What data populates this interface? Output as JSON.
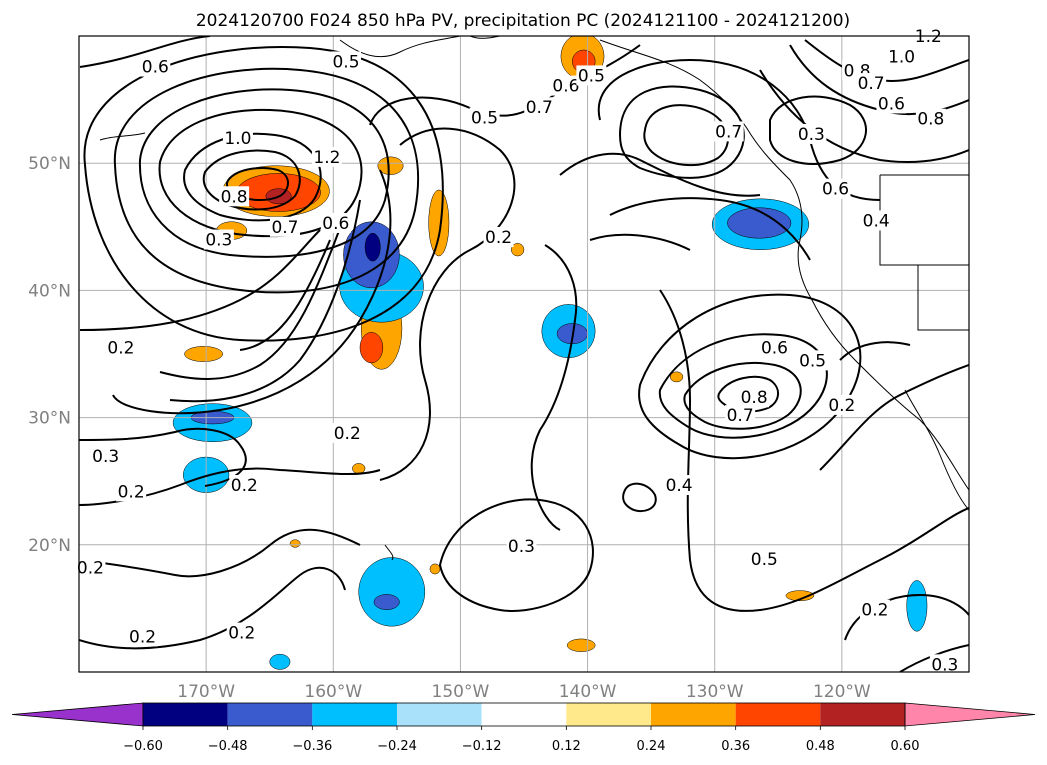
{
  "chart_data": {
    "type": "heatmap",
    "title": "2024120700 F024 850 hPa PV, precipitation PC (2024121100 - 2024121200)",
    "map_extent": {
      "lon": [
        -180,
        -110
      ],
      "lat": [
        10,
        60
      ]
    },
    "lat_ticks": [
      {
        "label": "50°N",
        "lat": 50
      },
      {
        "label": "40°N",
        "lat": 40
      },
      {
        "label": "30°N",
        "lat": 30
      },
      {
        "label": "20°N",
        "lat": 20
      }
    ],
    "lon_ticks": [
      {
        "label": "170°W",
        "lon": -170
      },
      {
        "label": "160°W",
        "lon": -160
      },
      {
        "label": "150°W",
        "lon": -150
      },
      {
        "label": "140°W",
        "lon": -140
      },
      {
        "label": "130°W",
        "lon": -130
      },
      {
        "label": "120°W",
        "lon": -120
      }
    ],
    "grid": true,
    "colorbar": {
      "orientation": "horizontal",
      "extend": "both",
      "ticks": [
        "−0.60",
        "−0.48",
        "−0.36",
        "−0.24",
        "−0.12",
        "0.12",
        "0.24",
        "0.36",
        "0.48",
        "0.60"
      ],
      "colors": [
        "#9932cc",
        "#000080",
        "#3a5bcd",
        "#00bfff",
        "#aae1fa",
        "#ffffff",
        "#ffe98a",
        "#ffa500",
        "#ff4500",
        "#b22222",
        "#ff85aa"
      ]
    },
    "pv_contour_labels": [
      {
        "text": "0.6",
        "lon": -174,
        "lat": 57.6
      },
      {
        "text": "0.5",
        "lon": -159,
        "lat": 58.0
      },
      {
        "text": "1.0",
        "lon": -167.5,
        "lat": 52.0
      },
      {
        "text": "1.2",
        "lon": -160.5,
        "lat": 50.5
      },
      {
        "text": "0.8",
        "lon": -167.8,
        "lat": 47.4
      },
      {
        "text": "0.7",
        "lon": -163.8,
        "lat": 45.0
      },
      {
        "text": "0.6",
        "lon": -159.8,
        "lat": 45.3
      },
      {
        "text": "0.3",
        "lon": -169.0,
        "lat": 44.0
      },
      {
        "text": "0.5",
        "lon": -148.1,
        "lat": 53.6
      },
      {
        "text": "0.7",
        "lon": -143.8,
        "lat": 54.4
      },
      {
        "text": "0.6",
        "lon": -141.7,
        "lat": 56.1
      },
      {
        "text": "0.5",
        "lon": -139.7,
        "lat": 56.9
      },
      {
        "text": "0.2",
        "lon": -147.0,
        "lat": 44.2
      },
      {
        "text": "0.2",
        "lon": -176.7,
        "lat": 35.5
      },
      {
        "text": "0.2",
        "lon": -158.9,
        "lat": 28.8
      },
      {
        "text": "0.3",
        "lon": -177.9,
        "lat": 27.0
      },
      {
        "text": "0.2",
        "lon": -175.9,
        "lat": 24.2
      },
      {
        "text": "0.2",
        "lon": -167.0,
        "lat": 24.7
      },
      {
        "text": "0.2",
        "lon": -179.1,
        "lat": 18.2
      },
      {
        "text": "0.2",
        "lon": -175.0,
        "lat": 12.8
      },
      {
        "text": "0.2",
        "lon": -167.2,
        "lat": 13.1
      },
      {
        "text": "0.3",
        "lon": -145.2,
        "lat": 19.9
      },
      {
        "text": "0.4",
        "lon": -132.8,
        "lat": 24.7
      },
      {
        "text": "0.5",
        "lon": -126.1,
        "lat": 18.9
      },
      {
        "text": "0.7",
        "lon": -128.9,
        "lat": 52.5
      },
      {
        "text": "0.3",
        "lon": -122.4,
        "lat": 52.3
      },
      {
        "text": "0.6",
        "lon": -120.5,
        "lat": 48.0
      },
      {
        "text": "0.4",
        "lon": -117.3,
        "lat": 45.5
      },
      {
        "text": "0.8",
        "lon": -118.8,
        "lat": 57.3
      },
      {
        "text": "0.7",
        "lon": -117.7,
        "lat": 56.3
      },
      {
        "text": "0.6",
        "lon": -116.1,
        "lat": 54.7
      },
      {
        "text": "0.8",
        "lon": -113.0,
        "lat": 53.5
      },
      {
        "text": "1.0",
        "lon": -115.3,
        "lat": 58.4
      },
      {
        "text": "1.2",
        "lon": -113.2,
        "lat": 60.0
      },
      {
        "text": "0.6",
        "lon": -125.3,
        "lat": 35.5
      },
      {
        "text": "0.5",
        "lon": -122.3,
        "lat": 34.5
      },
      {
        "text": "0.8",
        "lon": -126.9,
        "lat": 31.6
      },
      {
        "text": "0.7",
        "lon": -128.0,
        "lat": 30.2
      },
      {
        "text": "0.2",
        "lon": -120.0,
        "lat": 31.0
      },
      {
        "text": "0.2",
        "lon": -117.4,
        "lat": 14.9
      },
      {
        "text": "0.3",
        "lon": -111.9,
        "lat": 10.6
      }
    ],
    "precip_anomalies": [
      {
        "lon": -164.5,
        "lat": 47.8,
        "rx": 4.2,
        "ry": 2.0,
        "color": "#ffa500"
      },
      {
        "lon": -164.3,
        "lat": 47.7,
        "rx": 3.3,
        "ry": 1.5,
        "color": "#ff4500"
      },
      {
        "lon": -164.3,
        "lat": 47.4,
        "rx": 1.0,
        "ry": 0.6,
        "color": "#b22222"
      },
      {
        "lon": -168.0,
        "lat": 44.7,
        "rx": 1.2,
        "ry": 0.7,
        "color": "#ffa500"
      },
      {
        "lon": -170.2,
        "lat": 35.0,
        "rx": 1.5,
        "ry": 0.6,
        "color": "#ffa500"
      },
      {
        "lon": -155.5,
        "lat": 49.8,
        "rx": 1.0,
        "ry": 0.7,
        "color": "#ffa500"
      },
      {
        "lon": -151.7,
        "lat": 45.3,
        "rx": 0.8,
        "ry": 2.6,
        "color": "#ffa500"
      },
      {
        "lon": -156.2,
        "lat": 37.0,
        "rx": 1.6,
        "ry": 3.2,
        "color": "#ffa500"
      },
      {
        "lon": -157.0,
        "lat": 35.5,
        "rx": 0.9,
        "ry": 1.2,
        "color": "#ff4500"
      },
      {
        "lon": -140.4,
        "lat": 58.4,
        "rx": 1.7,
        "ry": 1.8,
        "color": "#ffa500"
      },
      {
        "lon": -140.3,
        "lat": 58.0,
        "rx": 0.9,
        "ry": 0.9,
        "color": "#ff4500"
      },
      {
        "lon": -156.2,
        "lat": 40.3,
        "rx": 3.3,
        "ry": 2.8,
        "color": "#00bfff"
      },
      {
        "lon": -157.0,
        "lat": 42.8,
        "rx": 2.2,
        "ry": 2.6,
        "color": "#3a5bcd"
      },
      {
        "lon": -156.9,
        "lat": 43.4,
        "rx": 0.6,
        "ry": 1.1,
        "color": "#000080"
      },
      {
        "lon": -169.5,
        "lat": 29.6,
        "rx": 3.1,
        "ry": 1.5,
        "color": "#00bfff"
      },
      {
        "lon": -169.5,
        "lat": 30.0,
        "rx": 1.7,
        "ry": 0.5,
        "color": "#3a5bcd"
      },
      {
        "lon": -170.0,
        "lat": 25.5,
        "rx": 1.8,
        "ry": 1.4,
        "color": "#00bfff"
      },
      {
        "lon": -141.5,
        "lat": 36.8,
        "rx": 2.1,
        "ry": 2.1,
        "color": "#00bfff"
      },
      {
        "lon": -141.2,
        "lat": 36.6,
        "rx": 1.2,
        "ry": 0.8,
        "color": "#3a5bcd"
      },
      {
        "lon": -126.4,
        "lat": 45.2,
        "rx": 3.8,
        "ry": 2.0,
        "color": "#00bfff"
      },
      {
        "lon": -126.5,
        "lat": 45.3,
        "rx": 2.5,
        "ry": 1.2,
        "color": "#3a5bcd"
      },
      {
        "lon": -155.4,
        "lat": 16.3,
        "rx": 2.6,
        "ry": 2.7,
        "color": "#00bfff"
      },
      {
        "lon": -155.8,
        "lat": 15.5,
        "rx": 1.0,
        "ry": 0.6,
        "color": "#3a5bcd"
      },
      {
        "lon": -114.1,
        "lat": 15.2,
        "rx": 0.8,
        "ry": 2.0,
        "color": "#00bfff"
      },
      {
        "lon": -164.2,
        "lat": 10.8,
        "rx": 0.8,
        "ry": 0.6,
        "color": "#00bfff"
      },
      {
        "lon": -140.5,
        "lat": 12.1,
        "rx": 1.1,
        "ry": 0.5,
        "color": "#ffa500"
      },
      {
        "lon": -123.3,
        "lat": 16.0,
        "rx": 1.1,
        "ry": 0.4,
        "color": "#ffa500"
      },
      {
        "lon": -145.5,
        "lat": 43.2,
        "rx": 0.5,
        "ry": 0.5,
        "color": "#ffa500"
      },
      {
        "lon": -133.0,
        "lat": 33.2,
        "rx": 0.5,
        "ry": 0.4,
        "color": "#ffa500"
      },
      {
        "lon": -158.0,
        "lat": 26.0,
        "rx": 0.5,
        "ry": 0.4,
        "color": "#ffa500"
      },
      {
        "lon": -152.0,
        "lat": 18.1,
        "rx": 0.4,
        "ry": 0.4,
        "color": "#ffa500"
      },
      {
        "lon": -163.0,
        "lat": 20.1,
        "rx": 0.4,
        "ry": 0.3,
        "color": "#ffa500"
      }
    ],
    "pv_contour_centers": [
      {
        "lon": -164.5,
        "lat": 48.0,
        "note": "PV maximum >1.2"
      },
      {
        "lon": -127.0,
        "lat": 31.0,
        "note": "PV maximum 0.8"
      },
      {
        "lon": -131.5,
        "lat": 53.0,
        "note": "PV maximum 0.7"
      }
    ]
  }
}
